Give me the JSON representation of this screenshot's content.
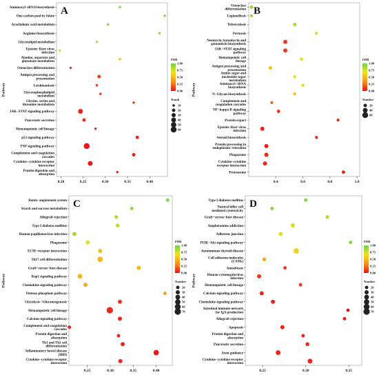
{
  "chart_data": [
    {
      "type": "bubble",
      "panel": "A",
      "y_label": "Pathway",
      "categories": [
        "Aminoacyl−tRNA biosynthesis",
        "One carbon pool by folate",
        "Arachidonic acid metabolism",
        "Arginine biosynthesis",
        "Glycerolipid metabolism",
        "Epstein−Barr virus infection",
        "Alanine, aspartate and glutamate metabolism",
        "Osteoclast differentiation",
        "Antigen processing and presentation",
        "Leishmaniasis",
        "Glycerophospholipid metabolism",
        "Glycine, serine and threonine metabolism",
        "JAK−STAT signaling pathway",
        "Pancreatic secretion",
        "Hematopoietic cell lineage",
        "p53 signaling pathway",
        "TNF signaling pathway",
        "Complement and coagulation cascades",
        "Cytokine−cytokine receptor interaction",
        "Protein digestion and absorption"
      ],
      "values": [
        0.333,
        0.434,
        0.306,
        0.422,
        0.281,
        0.197,
        0.333,
        0.222,
        0.286,
        0.281,
        0.289,
        0.364,
        0.244,
        0.252,
        0.278,
        0.372,
        0.258,
        0.364,
        0.266,
        0.327
      ],
      "sizes": [
        10,
        10,
        10,
        10,
        10,
        10,
        10,
        10,
        20,
        10,
        10,
        10,
        40,
        20,
        10,
        20,
        60,
        20,
        40,
        10
      ],
      "fdr": [
        0.95,
        0.95,
        0.9,
        0.9,
        0.8,
        0.7,
        0.55,
        0.1,
        0.1,
        0.1,
        0.1,
        0.1,
        0.05,
        0.05,
        0.05,
        0.05,
        0.02,
        0.02,
        0.02,
        0.05
      ],
      "xlim": [
        0.19,
        0.44
      ],
      "xticks": [
        {
          "value": 0.2,
          "label": "0.20"
        },
        0.25,
        {
          "value": 0.3,
          "label": "0.30"
        },
        0.35,
        {
          "value": 0.4,
          "label": "0.40"
        }
      ],
      "fdr_title": "FDR",
      "fdr_ticks": [
        {
          "value": 0,
          "label": "0.00"
        },
        {
          "value": 0.25,
          "label": "0.25"
        },
        {
          "value": 0.5,
          "label": "0.50"
        },
        {
          "value": 0.75,
          "label": "0.75"
        },
        {
          "value": 1,
          "label": "1.00"
        }
      ],
      "colorscale": [
        "#e8141a",
        "#f7901e",
        "#f0e21a",
        "#6fd34a"
      ],
      "size_title": "Numb",
      "size_legend": [
        10,
        20,
        30,
        40,
        50,
        60
      ]
    },
    {
      "type": "bubble",
      "panel": "B",
      "y_label": "Pathway",
      "categories": [
        "Osteoclast differentiation",
        "Legionellosis",
        "Tuberculosis",
        "Pertussis",
        "Neomycin, kanamycin and gentamicin biosynthesis",
        "JAK−STAT signaling pathway",
        "Hematopoietic cell lineage",
        "Antigen processing and presentation",
        "Amino sugar and nucleotide sugar metabolism",
        "Aminoacyl−tRNA biosynthesis",
        "N−Glycan biosynthesis",
        "Complement and coagulation cascades",
        "NF−kappa B signaling pathway",
        "Protein export",
        "Epstein−Barr virus infection",
        "Steroid biosynthesis",
        "Protein processing in endoplasmic reticulum",
        "Phagosome",
        "Cytokine−cytokine receptor interaction",
        "Proteasome"
      ],
      "values": [
        0.22,
        0.22,
        0.54,
        0.7,
        0.47,
        0.47,
        0.59,
        0.36,
        0.54,
        0.6,
        0.54,
        0.37,
        0.42,
        0.86,
        0.3,
        0.7,
        0.33,
        0.33,
        0.32,
        0.9
      ],
      "sizes": [
        20,
        15,
        20,
        15,
        30,
        30,
        20,
        20,
        15,
        15,
        15,
        15,
        20,
        15,
        30,
        15,
        30,
        30,
        30,
        20
      ],
      "fdr": [
        0.9,
        0.9,
        0.85,
        0.75,
        0.1,
        0.1,
        0.7,
        0.5,
        0.7,
        0.6,
        0.5,
        0.2,
        0.1,
        0.05,
        0.05,
        0.05,
        0.05,
        0.05,
        0.05,
        0.05
      ],
      "xlim": [
        0.2,
        1.02
      ],
      "xticks": [
        0.4,
        0.6,
        0.8,
        {
          "value": 1,
          "label": "1.0"
        }
      ],
      "fdr_title": "FDR",
      "fdr_ticks": [
        {
          "value": 0,
          "label": "0.00"
        },
        {
          "value": 0.25,
          "label": "0.25"
        },
        {
          "value": 0.5,
          "label": "0.50"
        },
        {
          "value": 0.75,
          "label": "0.75"
        },
        {
          "value": 1,
          "label": "1.00"
        }
      ],
      "colorscale": [
        "#e8141a",
        "#f7901e",
        "#f0e21a",
        "#6fd34a"
      ],
      "size_title": "Number",
      "size_legend": [
        20,
        40,
        60
      ]
    },
    {
      "type": "bubble",
      "panel": "C",
      "y_label": "Pathway",
      "categories": [
        "Renin−angiotensin system",
        "Starch and sucrose metabolism",
        "Allograft rejection",
        "Type I diabetes mellitus",
        "Human papillomavirus infection",
        "Phagosome",
        "ECM−receptor interaction",
        "Th17 cell differentiation",
        "Graft−versus−host disease",
        "Rap1 signaling pathway",
        "Chemokine signaling pathway",
        "Pentose phosphate pathway",
        "Glycolysis / Gluconeogenesis",
        "Hematopoietic cell lineage",
        "Calcium signaling pathway",
        "Complement and coagulation cascades",
        "Protein digestion and absorption",
        "Th1 and Th2 cell differentiation",
        "Inflammatory bowel disease (IBD)",
        "Cytokine−cytokine receptor interaction"
      ],
      "values": [
        0.425,
        0.347,
        0.313,
        0.316,
        0.222,
        0.251,
        0.278,
        0.278,
        0.362,
        0.234,
        0.246,
        0.419,
        0.321,
        0.299,
        0.321,
        0.211,
        0.318,
        0.327,
        0.4,
        0.322
      ],
      "sizes": [
        20,
        20,
        20,
        25,
        30,
        30,
        30,
        50,
        30,
        40,
        30,
        20,
        30,
        70,
        30,
        20,
        20,
        30,
        50,
        30
      ],
      "fdr": [
        0.95,
        0.9,
        0.85,
        0.8,
        0.85,
        0.7,
        0.55,
        0.5,
        0.5,
        0.5,
        0.45,
        0.4,
        0.1,
        0.05,
        0.05,
        0.05,
        0.05,
        0.05,
        0.02,
        0.05
      ],
      "xlim": [
        0.21,
        0.435
      ],
      "xticks": [
        0.25,
        {
          "value": 0.3,
          "label": "0.30"
        },
        0.35,
        {
          "value": 0.4,
          "label": "0.40"
        }
      ],
      "fdr_title": "FDR",
      "fdr_ticks": [
        {
          "value": 0,
          "label": "0.00"
        },
        {
          "value": 0.25,
          "label": "0.25"
        },
        {
          "value": 0.5,
          "label": "0.50"
        },
        {
          "value": 0.75,
          "label": "0.75"
        },
        {
          "value": 1,
          "label": "1.00"
        }
      ],
      "colorscale": [
        "#e8141a",
        "#f7901e",
        "#f0e21a",
        "#6fd34a"
      ],
      "size_title": "Number",
      "size_legend": [
        20,
        30,
        40,
        50,
        60,
        70
      ]
    },
    {
      "type": "bubble",
      "panel": "D",
      "y_label": "Pathway",
      "categories": [
        "Type I diabetes mellitus",
        "Natural killer cell mediated cytotoxicity",
        "Graft−versus−host disease",
        "Amphetamine addiction",
        "Adherens junction",
        "PI3K−Akt signaling pathway",
        "Autoimmune thyroid disease",
        "Cell adhesion molecules (CAMs)",
        "Amoebiasis",
        "Human cytomegalovirus infection",
        "Hematopoietic cell lineage",
        "Calcium signaling pathway",
        "Chemokine signaling pathway",
        "Intestinal immune network for IgA production",
        "Allograft rejection",
        "Apoptosis",
        "Protein digestion and absorption",
        "Pancreatic secretion",
        "Axon guidance",
        "Cytokine−cytokine receptor interaction"
      ],
      "values": [
        0.3,
        0.261,
        0.325,
        0.285,
        0.271,
        0.352,
        0.289,
        0.252,
        0.276,
        0.246,
        0.294,
        0.249,
        0.262,
        0.349,
        0.345,
        0.273,
        0.297,
        0.302,
        0.268,
        0.305
      ],
      "sizes": [
        20,
        20,
        20,
        30,
        30,
        20,
        50,
        25,
        20,
        30,
        20,
        30,
        30,
        20,
        20,
        30,
        20,
        25,
        40,
        40
      ],
      "fdr": [
        0.95,
        0.95,
        0.85,
        0.75,
        0.7,
        0.95,
        0.6,
        0.45,
        0.1,
        0.1,
        0.1,
        0.05,
        0.05,
        0.02,
        0.02,
        0.05,
        0.05,
        0.05,
        0.05,
        0.05
      ],
      "xlim": [
        0.23,
        0.365
      ],
      "xticks": [
        0.25,
        {
          "value": 0.3,
          "label": "0.30"
        },
        0.35
      ],
      "fdr_title": "FDR",
      "fdr_ticks": [
        {
          "value": 0,
          "label": "0.00"
        },
        {
          "value": 0.25,
          "label": "0.25"
        },
        {
          "value": 0.5,
          "label": "0.50"
        },
        {
          "value": 0.75,
          "label": "0.75"
        },
        {
          "value": 1,
          "label": "1.00"
        }
      ],
      "colorscale": [
        "#e8141a",
        "#f7901e",
        "#f0e21a",
        "#6fd34a"
      ],
      "size_title": "Number",
      "size_legend": [
        20,
        30,
        40,
        50,
        60,
        70
      ]
    }
  ]
}
